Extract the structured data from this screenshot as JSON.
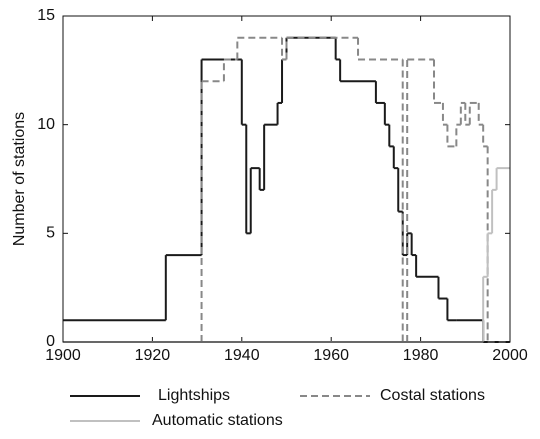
{
  "chart_data": {
    "type": "step",
    "ylabel": "Number of stations",
    "xlim": [
      1900,
      2000
    ],
    "xticks": [
      1900,
      1920,
      1940,
      1960,
      1980,
      2000
    ],
    "ylim": [
      0,
      15
    ],
    "yticks": [
      0,
      5,
      10,
      15
    ],
    "series": [
      {
        "name": "Lightships",
        "color": "#1a1a1a",
        "dash": false,
        "x": [
          1900,
          1923,
          1931,
          1940,
          1941,
          1942,
          1944,
          1945,
          1948,
          1949,
          1950,
          1961,
          1962,
          1970,
          1972,
          1973,
          1974,
          1975,
          1976,
          1977,
          1978,
          1979,
          1984,
          1986,
          1988,
          1994,
          2000
        ],
        "values": [
          1,
          4,
          13,
          10,
          5,
          8,
          7,
          10,
          11,
          13,
          14,
          13,
          12,
          11,
          10,
          9,
          8,
          6,
          4,
          5,
          4,
          3,
          2,
          1,
          1,
          0,
          0
        ]
      },
      {
        "name": "Costal stations",
        "color": "#888888",
        "dash": true,
        "x": [
          1900,
          1931,
          1936,
          1939,
          1949,
          1950,
          1966,
          1976,
          1977,
          1983,
          1985,
          1986,
          1988,
          1989,
          1990,
          1991,
          1993,
          1994,
          1995,
          2000
        ],
        "values": [
          0,
          12,
          13,
          14,
          13,
          14,
          13,
          0,
          13,
          11,
          10,
          9,
          10,
          11,
          10,
          11,
          10,
          9,
          0,
          0
        ]
      },
      {
        "name": "Automatic stations",
        "color": "#c0c0c0",
        "dash": false,
        "x": [
          1900,
          1994,
          1995,
          1996,
          1997,
          2000
        ],
        "values": [
          0,
          3,
          5,
          7,
          8,
          8
        ]
      }
    ]
  }
}
